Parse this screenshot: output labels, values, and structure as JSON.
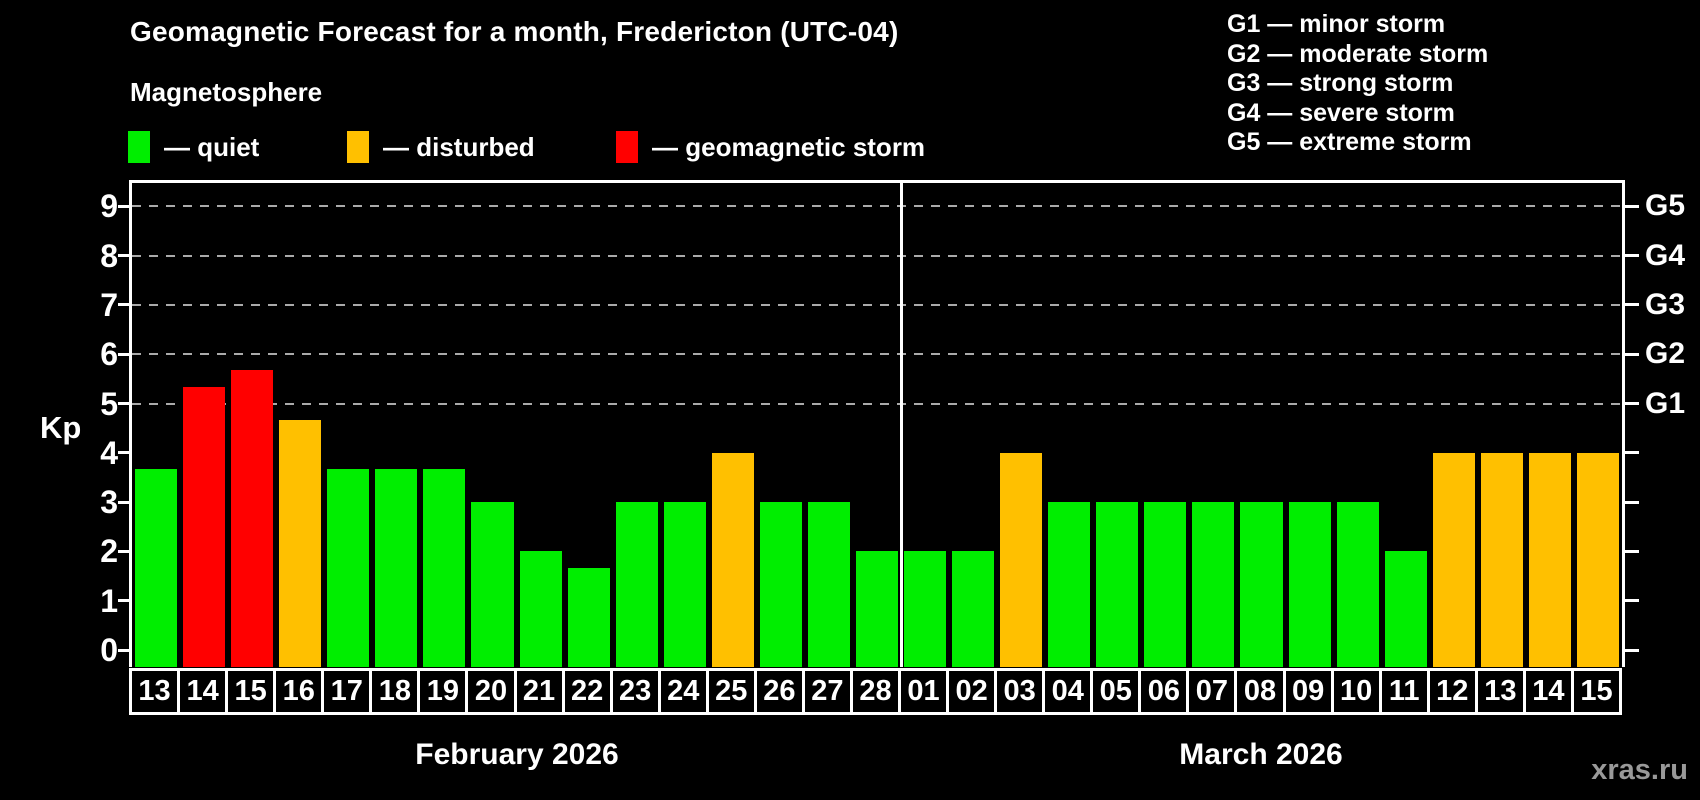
{
  "header": {
    "title": "Geomagnetic Forecast for a month, Fredericton (UTC-04)",
    "subtitle": "Magnetosphere",
    "legend": [
      {
        "label": "— quiet",
        "status": "quiet",
        "color": "#00ee00"
      },
      {
        "label": "— disturbed",
        "status": "disturbed",
        "color": "#ffc000"
      },
      {
        "label": "— geomagnetic storm",
        "status": "storm",
        "color": "#ff0000"
      }
    ]
  },
  "g_scale_legend": [
    "G1 — minor storm",
    "G2 — moderate storm",
    "G3 — strong storm",
    "G4 — severe storm",
    "G5 — extreme storm"
  ],
  "watermark": "xras.ru",
  "chart_data": {
    "type": "bar",
    "title": "Geomagnetic Forecast for a month, Fredericton (UTC-04)",
    "subtitle": "Magnetosphere",
    "ylabel": "Kp",
    "ylim": [
      0,
      9.45
    ],
    "yticks": [
      0,
      1,
      2,
      3,
      4,
      5,
      6,
      7,
      8,
      9
    ],
    "grid": "dashed horizontal at Kp 5-9 only",
    "legend_position": "top-left",
    "right_axis": [
      {
        "value": 5,
        "label": "G1"
      },
      {
        "value": 6,
        "label": "G2"
      },
      {
        "value": 7,
        "label": "G3"
      },
      {
        "value": 8,
        "label": "G4"
      },
      {
        "value": 9,
        "label": "G5"
      }
    ],
    "gridlines_at": [
      5,
      6,
      7,
      8,
      9
    ],
    "colors": {
      "quiet": "#00ee00",
      "disturbed": "#ffc000",
      "storm": "#ff0000"
    },
    "months": [
      {
        "label": "February 2026",
        "bars": [
          {
            "day": "13",
            "value": 3.67,
            "status": "quiet"
          },
          {
            "day": "14",
            "value": 5.33,
            "status": "storm"
          },
          {
            "day": "15",
            "value": 5.67,
            "status": "storm"
          },
          {
            "day": "16",
            "value": 4.67,
            "status": "disturbed"
          },
          {
            "day": "17",
            "value": 3.67,
            "status": "quiet"
          },
          {
            "day": "18",
            "value": 3.67,
            "status": "quiet"
          },
          {
            "day": "19",
            "value": 3.67,
            "status": "quiet"
          },
          {
            "day": "20",
            "value": 3,
            "status": "quiet"
          },
          {
            "day": "21",
            "value": 2,
            "status": "quiet"
          },
          {
            "day": "22",
            "value": 1.67,
            "status": "quiet"
          },
          {
            "day": "23",
            "value": 3,
            "status": "quiet"
          },
          {
            "day": "24",
            "value": 3,
            "status": "quiet"
          },
          {
            "day": "25",
            "value": 4,
            "status": "disturbed"
          },
          {
            "day": "26",
            "value": 3,
            "status": "quiet"
          },
          {
            "day": "27",
            "value": 3,
            "status": "quiet"
          },
          {
            "day": "28",
            "value": 2,
            "status": "quiet"
          }
        ]
      },
      {
        "label": "March 2026",
        "bars": [
          {
            "day": "01",
            "value": 2,
            "status": "quiet"
          },
          {
            "day": "02",
            "value": 2,
            "status": "quiet"
          },
          {
            "day": "03",
            "value": 4,
            "status": "disturbed"
          },
          {
            "day": "04",
            "value": 3,
            "status": "quiet"
          },
          {
            "day": "05",
            "value": 3,
            "status": "quiet"
          },
          {
            "day": "06",
            "value": 3,
            "status": "quiet"
          },
          {
            "day": "07",
            "value": 3,
            "status": "quiet"
          },
          {
            "day": "08",
            "value": 3,
            "status": "quiet"
          },
          {
            "day": "09",
            "value": 3,
            "status": "quiet"
          },
          {
            "day": "10",
            "value": 3,
            "status": "quiet"
          },
          {
            "day": "11",
            "value": 2,
            "status": "quiet"
          },
          {
            "day": "12",
            "value": 4,
            "status": "disturbed"
          },
          {
            "day": "13",
            "value": 4,
            "status": "disturbed"
          },
          {
            "day": "14",
            "value": 4,
            "status": "disturbed"
          },
          {
            "day": "15",
            "value": 4,
            "status": "disturbed"
          }
        ]
      }
    ]
  }
}
